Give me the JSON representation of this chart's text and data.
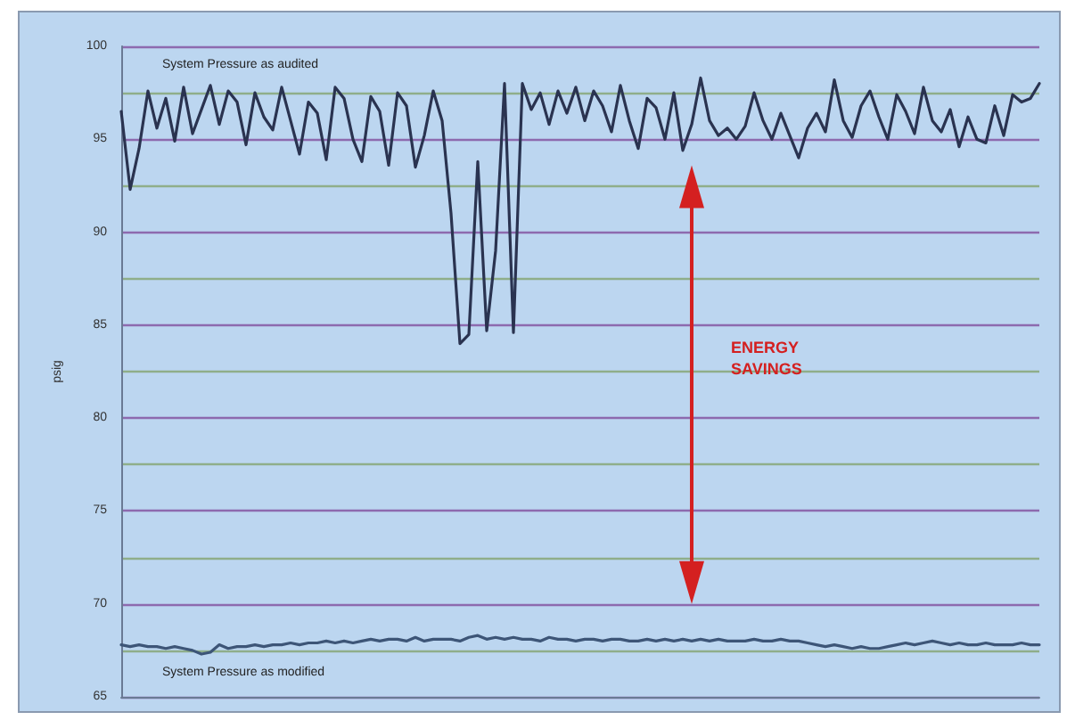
{
  "chart_data": {
    "type": "line",
    "ylabel": "psig",
    "categories": [
      null,
      null,
      null,
      null,
      null,
      null,
      null,
      null,
      null,
      null,
      null,
      null,
      null,
      null,
      null,
      null,
      null,
      null,
      null,
      null,
      null,
      null,
      null,
      null,
      null,
      null,
      null,
      null,
      null,
      null,
      null,
      null,
      null,
      null,
      null,
      null,
      null,
      null,
      null,
      null,
      null,
      null,
      null,
      null,
      null,
      null,
      null,
      null,
      null,
      null,
      null,
      null,
      null,
      null,
      null,
      null,
      null,
      null,
      null,
      null,
      null,
      null,
      null,
      null,
      null,
      null,
      null,
      null,
      null,
      null,
      null,
      null,
      null,
      null,
      null,
      null,
      null,
      null,
      null,
      null,
      null,
      null,
      null,
      null,
      null,
      null,
      null,
      null,
      null,
      null,
      null,
      null,
      null,
      null,
      null,
      null,
      null,
      null,
      null,
      null,
      null,
      null,
      null,
      null
    ],
    "series": [
      {
        "name": "System Pressure as audited",
        "color": "#2a3350",
        "values": [
          96.5,
          92.3,
          94.5,
          97.6,
          95.6,
          97.2,
          94.9,
          97.8,
          95.3,
          96.6,
          97.9,
          95.8,
          97.6,
          97.0,
          94.7,
          97.5,
          96.2,
          95.5,
          97.8,
          96.0,
          94.2,
          97.0,
          96.4,
          93.9,
          97.8,
          97.2,
          95.0,
          93.8,
          97.3,
          96.5,
          93.6,
          97.5,
          96.8,
          93.5,
          95.2,
          97.6,
          96.0,
          91.0,
          84.0,
          84.5,
          93.8,
          84.7,
          89.0,
          98.0,
          84.6,
          98.0,
          96.6,
          97.5,
          95.8,
          97.6,
          96.4,
          97.8,
          96.0,
          97.6,
          96.8,
          95.4,
          97.9,
          96.0,
          94.5,
          97.2,
          96.7,
          95.0,
          97.5,
          94.4,
          95.8,
          98.3,
          96.0,
          95.2,
          95.6,
          95.0,
          95.7,
          97.5,
          96.0,
          95.0,
          96.4,
          95.2,
          94.0,
          95.6,
          96.4,
          95.4,
          98.2,
          96.0,
          95.1,
          96.8,
          97.6,
          96.2,
          95.0,
          97.4,
          96.5,
          95.3,
          97.8,
          96.0,
          95.4,
          96.6,
          94.6,
          96.2,
          95.0,
          94.8,
          96.8,
          95.2,
          97.4,
          97.0,
          97.2,
          98.0
        ]
      },
      {
        "name": "System Pressure as modified",
        "color": "#3d5577",
        "values": [
          67.8,
          67.7,
          67.8,
          67.7,
          67.7,
          67.6,
          67.7,
          67.6,
          67.5,
          67.3,
          67.4,
          67.8,
          67.6,
          67.7,
          67.7,
          67.8,
          67.7,
          67.8,
          67.8,
          67.9,
          67.8,
          67.9,
          67.9,
          68.0,
          67.9,
          68.0,
          67.9,
          68.0,
          68.1,
          68.0,
          68.1,
          68.1,
          68.0,
          68.2,
          68.0,
          68.1,
          68.1,
          68.1,
          68.0,
          68.2,
          68.3,
          68.1,
          68.2,
          68.1,
          68.2,
          68.1,
          68.1,
          68.0,
          68.2,
          68.1,
          68.1,
          68.0,
          68.1,
          68.1,
          68.0,
          68.1,
          68.1,
          68.0,
          68.0,
          68.1,
          68.0,
          68.1,
          68.0,
          68.1,
          68.0,
          68.1,
          68.0,
          68.1,
          68.0,
          68.0,
          68.0,
          68.1,
          68.0,
          68.0,
          68.1,
          68.0,
          68.0,
          67.9,
          67.8,
          67.7,
          67.8,
          67.7,
          67.6,
          67.7,
          67.6,
          67.6,
          67.7,
          67.8,
          67.9,
          67.8,
          67.9,
          68.0,
          67.9,
          67.8,
          67.9,
          67.8,
          67.8,
          67.9,
          67.8,
          67.8,
          67.8,
          67.9,
          67.8,
          67.8
        ]
      }
    ],
    "ylim": [
      65,
      100
    ],
    "yticks": [
      65,
      {
        "value": 67.5,
        "label": null
      },
      70,
      {
        "value": 72.5,
        "label": null
      },
      75,
      {
        "value": 77.5,
        "label": null
      },
      80,
      {
        "value": 82.5,
        "label": null
      },
      85,
      {
        "value": 87.5,
        "label": null
      },
      90,
      {
        "value": 92.5,
        "label": null
      },
      95,
      {
        "value": 97.5,
        "label": null
      },
      100
    ],
    "grid": "y",
    "legend": false,
    "marker": "none",
    "line_style": "solid",
    "annotations": [
      "ENERGY SAVINGS"
    ]
  }
}
